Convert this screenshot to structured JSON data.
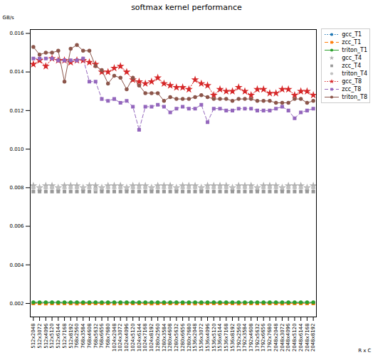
{
  "chart_data": {
    "type": "line",
    "title": "softmax kernel performance",
    "y_label": "GB/s",
    "x_label": "R x C",
    "categories": [
      "512x2048",
      "512x3072",
      "512x4096",
      "512x5120",
      "512x6144",
      "512x7168",
      "512x8192",
      "768x2560",
      "768x3584",
      "768x4608",
      "768x5632",
      "768x6656",
      "768x7680",
      "1024x2048",
      "1024x3072",
      "1024x4096",
      "1024x5120",
      "1024x6144",
      "1024x7168",
      "1024x8192",
      "1280x2560",
      "1280x3584",
      "1280x4608",
      "1280x5632",
      "1280x6656",
      "1280x7680",
      "1536x2048",
      "1536x3072",
      "1536x4096",
      "1536x5120",
      "1536x6144",
      "1536x7168",
      "1536x8192",
      "1792x2560",
      "1792x3584",
      "1792x4608",
      "1792x5632",
      "1792x6656",
      "1792x7680",
      "2048x2048",
      "2048x3072",
      "2048x4096",
      "2048x5120",
      "2048x6144",
      "2048x7168",
      "2048x8192"
    ],
    "ylim": [
      0.0013,
      0.0162
    ],
    "yticks": [
      0.002,
      0.004,
      0.006,
      0.008,
      {
        "value": 0.01,
        "label": "0.010"
      },
      0.012,
      0.014,
      0.016
    ],
    "grid": false,
    "legend": "upper right",
    "series": [
      {
        "name": "gcc_T1",
        "color": "#1f77b4",
        "marker": "circle",
        "line_style": "dotted",
        "values": [
          0.00203,
          0.00203,
          0.00203,
          0.00204,
          0.00203,
          0.00203,
          0.00203,
          0.00204,
          0.00203,
          0.00203,
          0.00203,
          0.00203,
          0.00204,
          0.00203,
          0.00203,
          0.00203,
          0.00203,
          0.00204,
          0.00203,
          0.00203,
          0.00203,
          0.00203,
          0.00203,
          0.00204,
          0.00203,
          0.00203,
          0.00203,
          0.00203,
          0.00203,
          0.00204,
          0.00203,
          0.00203,
          0.00203,
          0.00203,
          0.00203,
          0.00204,
          0.00203,
          0.00203,
          0.00203,
          0.00203,
          0.00203,
          0.00204,
          0.00203,
          0.00203,
          0.00203,
          0.00203
        ]
      },
      {
        "name": "zcc_T1",
        "color": "#ff7f0e",
        "marker": "square",
        "line_style": "dashed",
        "values": [
          0.002,
          0.002,
          0.00199,
          0.002,
          0.002,
          0.002,
          0.002,
          0.00199,
          0.002,
          0.002,
          0.002,
          0.002,
          0.002,
          0.00199,
          0.002,
          0.002,
          0.002,
          0.002,
          0.002,
          0.00199,
          0.002,
          0.002,
          0.002,
          0.002,
          0.002,
          0.002,
          0.00199,
          0.002,
          0.002,
          0.002,
          0.002,
          0.002,
          0.002,
          0.00199,
          0.002,
          0.002,
          0.002,
          0.002,
          0.002,
          0.002,
          0.00199,
          0.002,
          0.002,
          0.002,
          0.002,
          0.002
        ]
      },
      {
        "name": "triton_T1",
        "color": "#2ca02c",
        "marker": "circle",
        "line_style": "solid",
        "values": [
          0.00206,
          0.00206,
          0.00206,
          0.00206,
          0.00206,
          0.00206,
          0.00206,
          0.00206,
          0.00206,
          0.00206,
          0.00206,
          0.00206,
          0.00206,
          0.00206,
          0.00206,
          0.00206,
          0.00206,
          0.00206,
          0.00206,
          0.00206,
          0.00206,
          0.00206,
          0.00206,
          0.00206,
          0.00206,
          0.00206,
          0.00206,
          0.00206,
          0.00206,
          0.00206,
          0.00206,
          0.00206,
          0.00206,
          0.00206,
          0.00206,
          0.00206,
          0.00206,
          0.00206,
          0.00206,
          0.00206,
          0.00206,
          0.00206,
          0.00206,
          0.00206,
          0.00206,
          0.00206
        ]
      },
      {
        "name": "gcc_T4",
        "color": "#b0b0b0",
        "marker": "star",
        "line_style": "none",
        "values": [
          0.0081,
          0.008,
          0.0081,
          0.0081,
          0.008,
          0.0081,
          0.0081,
          0.0081,
          0.008,
          0.0081,
          0.0081,
          0.008,
          0.0081,
          0.0081,
          0.0081,
          0.008,
          0.0081,
          0.0081,
          0.0081,
          0.008,
          0.0081,
          0.0081,
          0.0081,
          0.008,
          0.0081,
          0.0081,
          0.0081,
          0.008,
          0.0081,
          0.0081,
          0.0081,
          0.0081,
          0.008,
          0.0081,
          0.0081,
          0.0081,
          0.008,
          0.0081,
          0.0081,
          0.0081,
          0.008,
          0.0081,
          0.0081,
          0.0081,
          0.008,
          0.0081
        ]
      },
      {
        "name": "zcc_T4",
        "color": "#999999",
        "marker": "square",
        "line_style": "none",
        "values": [
          0.0078,
          0.0078,
          0.0078,
          0.0078,
          0.0078,
          0.0078,
          0.0078,
          0.0078,
          0.0078,
          0.0078,
          0.0078,
          0.0078,
          0.0078,
          0.0078,
          0.0078,
          0.0078,
          0.0078,
          0.0078,
          0.0078,
          0.0078,
          0.0078,
          0.0078,
          0.0078,
          0.0078,
          0.0078,
          0.0078,
          0.0078,
          0.0078,
          0.0078,
          0.0078,
          0.0078,
          0.0078,
          0.0078,
          0.0078,
          0.0078,
          0.0078,
          0.0078,
          0.0078,
          0.0078,
          0.0078,
          0.0078,
          0.0078,
          0.0078,
          0.0078,
          0.0078,
          0.0078
        ]
      },
      {
        "name": "triton_T4",
        "color": "#c0c0c0",
        "marker": "circle",
        "line_style": "none",
        "values": [
          0.008,
          0.008,
          0.008,
          0.008,
          0.008,
          0.008,
          0.008,
          0.008,
          0.008,
          0.008,
          0.0079,
          0.008,
          0.008,
          0.008,
          0.008,
          0.008,
          0.008,
          0.008,
          0.008,
          0.008,
          0.008,
          0.008,
          0.008,
          0.008,
          0.008,
          0.008,
          0.008,
          0.008,
          0.008,
          0.008,
          0.008,
          0.008,
          0.008,
          0.008,
          0.008,
          0.008,
          0.008,
          0.008,
          0.008,
          0.008,
          0.008,
          0.008,
          0.008,
          0.008,
          0.008,
          0.008
        ]
      },
      {
        "name": "gcc_T8",
        "color": "#d62728",
        "marker": "star",
        "line_style": "dotted",
        "values": [
          0.0144,
          0.0146,
          0.0143,
          0.0147,
          0.0146,
          0.0146,
          0.0145,
          0.0146,
          0.0146,
          0.0145,
          0.0144,
          0.014,
          0.014,
          0.0142,
          0.0143,
          0.014,
          0.0136,
          0.0135,
          0.0134,
          0.0135,
          0.0137,
          0.0134,
          0.0133,
          0.0132,
          0.0132,
          0.0131,
          0.0136,
          0.0134,
          0.0133,
          0.0128,
          0.0131,
          0.013,
          0.013,
          0.0132,
          0.013,
          0.0128,
          0.0131,
          0.0131,
          0.0129,
          0.0129,
          0.0131,
          0.0131,
          0.0128,
          0.013,
          0.013,
          0.0128
        ]
      },
      {
        "name": "zcc_T8",
        "color": "#9467bd",
        "marker": "square",
        "line_style": "dashed",
        "values": [
          0.0147,
          0.0147,
          0.0147,
          0.0147,
          0.0146,
          0.0146,
          0.0146,
          0.0146,
          0.0147,
          0.0135,
          0.0135,
          0.0126,
          0.0125,
          0.0126,
          0.0124,
          0.0125,
          0.0122,
          0.011,
          0.0122,
          0.0122,
          0.0123,
          0.0122,
          0.0119,
          0.0121,
          0.0122,
          0.0121,
          0.0121,
          0.0123,
          0.0114,
          0.0121,
          0.0121,
          0.012,
          0.012,
          0.0121,
          0.0121,
          0.0121,
          0.012,
          0.012,
          0.012,
          0.0121,
          0.0122,
          0.012,
          0.0116,
          0.0119,
          0.012,
          0.0121
        ]
      },
      {
        "name": "triton_T8",
        "color": "#8c564b",
        "marker": "circle",
        "line_style": "solid",
        "values": [
          0.0153,
          0.0149,
          0.015,
          0.015,
          0.0151,
          0.0135,
          0.0152,
          0.0154,
          0.0151,
          0.0151,
          0.0143,
          0.0141,
          0.0134,
          0.0138,
          0.0137,
          0.0131,
          0.0137,
          0.0133,
          0.0129,
          0.0129,
          0.0129,
          0.0125,
          0.0127,
          0.0126,
          0.0126,
          0.0126,
          0.0127,
          0.0128,
          0.0127,
          0.0126,
          0.0126,
          0.0126,
          0.0125,
          0.0126,
          0.0126,
          0.0126,
          0.0125,
          0.0125,
          0.0125,
          0.0124,
          0.0124,
          0.0124,
          0.0126,
          0.0126,
          0.0124,
          0.0125
        ]
      }
    ]
  }
}
